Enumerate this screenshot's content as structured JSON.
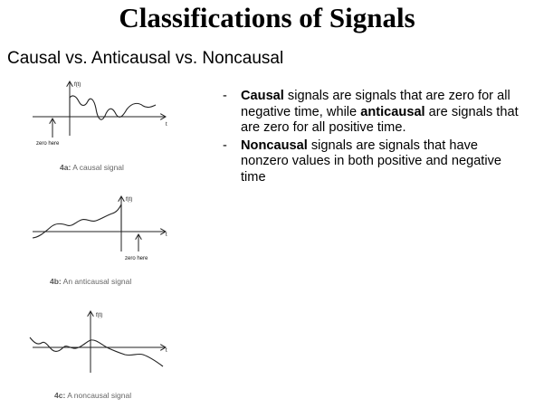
{
  "slide": {
    "title": "Classifications of Signals",
    "subtitle": "Causal vs. Anticausal vs. Noncausal"
  },
  "bullets": [
    {
      "dash": "-",
      "term1": "Causal",
      "text1": " signals are signals that are zero for all negative time, while ",
      "term2": "anticausal",
      "text2": " are signals that are zero for all positive time."
    },
    {
      "dash": "-",
      "term1": "Noncausal",
      "text1": " signals are signals that have nonzero values in both positive and negative time"
    }
  ],
  "figures": {
    "fig4a": {
      "ylabel": "f(t)",
      "xlabel": "t",
      "marker": "zero here",
      "caption_label": "4a:",
      "caption_text": "A causal signal"
    },
    "fig4b": {
      "ylabel": "f(t)",
      "xlabel": "t",
      "marker": "zero here",
      "caption_label": "4b:",
      "caption_text": "An anticausal signal"
    },
    "fig4c": {
      "ylabel": "f(t)",
      "xlabel": "t",
      "caption_label": "4c:",
      "caption_text": "A noncausal signal"
    }
  }
}
